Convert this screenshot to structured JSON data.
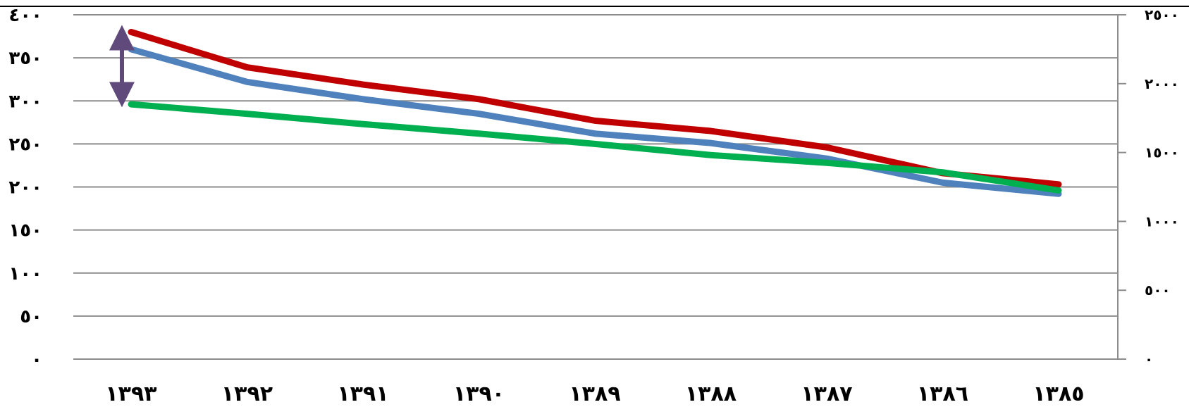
{
  "chart_data": {
    "type": "line",
    "title": "",
    "xlabel": "",
    "ylabel": "",
    "categories": [
      "١٣٩٣",
      "١٣٩٢",
      "١٣٩١",
      "١٣٩٠",
      "١٣٨٩",
      "١٣٨٨",
      "١٣٨٧",
      "١٣٨٦",
      "١٣٨٥"
    ],
    "ylim_left": [
      0,
      400
    ],
    "ylim_right": [
      0,
      2500
    ],
    "yticks_left": [
      "٠",
      "٥٠",
      "١٠٠",
      "١٥٠",
      "٢٠٠",
      "٢٥٠",
      "٣٠٠",
      "٣٥٠",
      "٤٠٠"
    ],
    "yticks_right": [
      "٠",
      "٥٠٠",
      "١٠٠٠",
      "١٥٠٠",
      "٢٠٠٠",
      "٢٥٠٠"
    ],
    "grid": true,
    "series": [
      {
        "color": "#c00000",
        "axis": "left",
        "values": [
          380,
          339,
          319,
          302,
          277,
          265,
          246,
          216,
          203
        ]
      },
      {
        "color": "#4f81bd",
        "axis": "left",
        "values": [
          360,
          322,
          302,
          285,
          262,
          251,
          233,
          205,
          192
        ]
      },
      {
        "color": "#00b050",
        "axis": "left",
        "values": [
          296,
          285,
          273,
          262,
          250,
          237,
          228,
          217,
          196
        ]
      }
    ],
    "annotations": [
      {
        "type": "double-arrow",
        "category": "١٣٩٣",
        "from_value": 380,
        "to_value": 304,
        "color": "#604a7b"
      }
    ]
  }
}
